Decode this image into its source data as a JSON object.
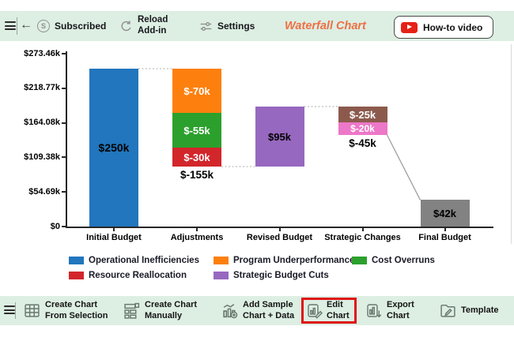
{
  "topbar": {
    "subscribed_label": "Subscribed",
    "reload_line1": "Reload",
    "reload_line2": "Add-in",
    "settings_label": "Settings",
    "title": "Waterfall Chart",
    "howto_label": "How-to video",
    "title_color": "#ee7044",
    "toolbar_bg": "#ddeee3"
  },
  "chart_data": {
    "type": "bar",
    "subtype": "waterfall",
    "title": "",
    "unit": "USD thousands",
    "categories": [
      "Initial Budget",
      "Adjustments",
      "Revised Budget",
      "Strategic Changes",
      "Final Budget"
    ],
    "y_ticks": [
      {
        "label": "$0",
        "value": 0
      },
      {
        "label": "$54.69k",
        "value": 54.69
      },
      {
        "label": "$109.38k",
        "value": 109.38
      },
      {
        "label": "$164.08k",
        "value": 164.08
      },
      {
        "label": "$218.77k",
        "value": 218.77
      },
      {
        "label": "$273.46k",
        "value": 273.46
      }
    ],
    "ylim": [
      0,
      273.46
    ],
    "grid": false,
    "legend_position": "bottom",
    "segments": [
      {
        "cat": 0,
        "from": 0,
        "to": 250,
        "value": 250,
        "label": "$250k",
        "color": "#2176bd",
        "label_color": "#000000",
        "series": "Operational Inefficiencies"
      },
      {
        "cat": 1,
        "from": 250,
        "to": 180,
        "value": -70,
        "label": "$-70k",
        "color": "#fd800e",
        "label_color": "#ffffff",
        "series": "Program Underperformance"
      },
      {
        "cat": 1,
        "from": 180,
        "to": 125,
        "value": -55,
        "label": "$-55k",
        "color": "#2ca02c",
        "label_color": "#ffffff",
        "series": "Cost Overruns"
      },
      {
        "cat": 1,
        "from": 125,
        "to": 95,
        "value": -30,
        "label": "$-30k",
        "color": "#d2262b",
        "label_color": "#ffffff",
        "series": "Resource Reallocation"
      },
      {
        "cat": 2,
        "from": 95,
        "to": 190,
        "value": 95,
        "label": "$95k",
        "color": "#9768bf",
        "label_color": "#000000",
        "series": "Strategic Budget Cuts"
      },
      {
        "cat": 3,
        "from": 190,
        "to": 165,
        "value": -25,
        "label": "$-25k",
        "color": "#8c5a4d",
        "label_color": "#ffffff",
        "series": "Strategic Budget Cuts"
      },
      {
        "cat": 3,
        "from": 165,
        "to": 145,
        "value": -20,
        "label": "$-20k",
        "color": "#ed77c8",
        "label_color": "#ffffff",
        "series": "Strategic Budget Cuts"
      },
      {
        "cat": 4,
        "from": 0,
        "to": 42,
        "value": 42,
        "label": "$42k",
        "color": "#828282",
        "label_color": "#000000",
        "series": "Final Budget"
      }
    ],
    "total_labels": [
      {
        "cat": 1,
        "at": 95,
        "label": "$-155k"
      },
      {
        "cat": 3,
        "at": 145,
        "label": "$-45k"
      }
    ],
    "connectors": [
      {
        "from_cat": 0,
        "to_cat": 1,
        "v1": 250,
        "v2": 250,
        "style": "dotted"
      },
      {
        "from_cat": 1,
        "to_cat": 2,
        "v1": 95,
        "v2": 95,
        "style": "dotted"
      },
      {
        "from_cat": 2,
        "to_cat": 3,
        "v1": 190,
        "v2": 190,
        "style": "dotted"
      },
      {
        "from_cat": 3,
        "to_cat": 4,
        "v1": 145,
        "v2": 42,
        "style": "solid"
      }
    ],
    "legend": [
      {
        "label": "Operational Inefficiencies",
        "color": "#2176bd",
        "row": 0,
        "col": 0
      },
      {
        "label": "Program Underperformance",
        "color": "#fd800e",
        "row": 0,
        "col": 1
      },
      {
        "label": "Cost Overruns",
        "color": "#2ca02c",
        "row": 0,
        "col": 2
      },
      {
        "label": "Resource Reallocation",
        "color": "#d2262b",
        "row": 1,
        "col": 0
      },
      {
        "label": "Strategic Budget Cuts",
        "color": "#9768bf",
        "row": 1,
        "col": 1
      }
    ]
  },
  "bottombar": {
    "items": [
      {
        "line1": "Create Chart",
        "line2": "From Selection",
        "icon": "table-icon"
      },
      {
        "line1": "Create Chart",
        "line2": "Manually",
        "icon": "form-icon"
      },
      {
        "line1": "Add Sample",
        "line2": "Chart + Data",
        "icon": "chart-plus-icon"
      },
      {
        "line1": "Edit",
        "line2": "Chart",
        "icon": "chart-pencil-icon",
        "highlighted": true
      },
      {
        "line1": "Export",
        "line2": "Chart",
        "icon": "chart-export-icon"
      },
      {
        "line1": "Template",
        "line2": "",
        "icon": "template-icon"
      }
    ],
    "highlight_color": "#e01212"
  }
}
